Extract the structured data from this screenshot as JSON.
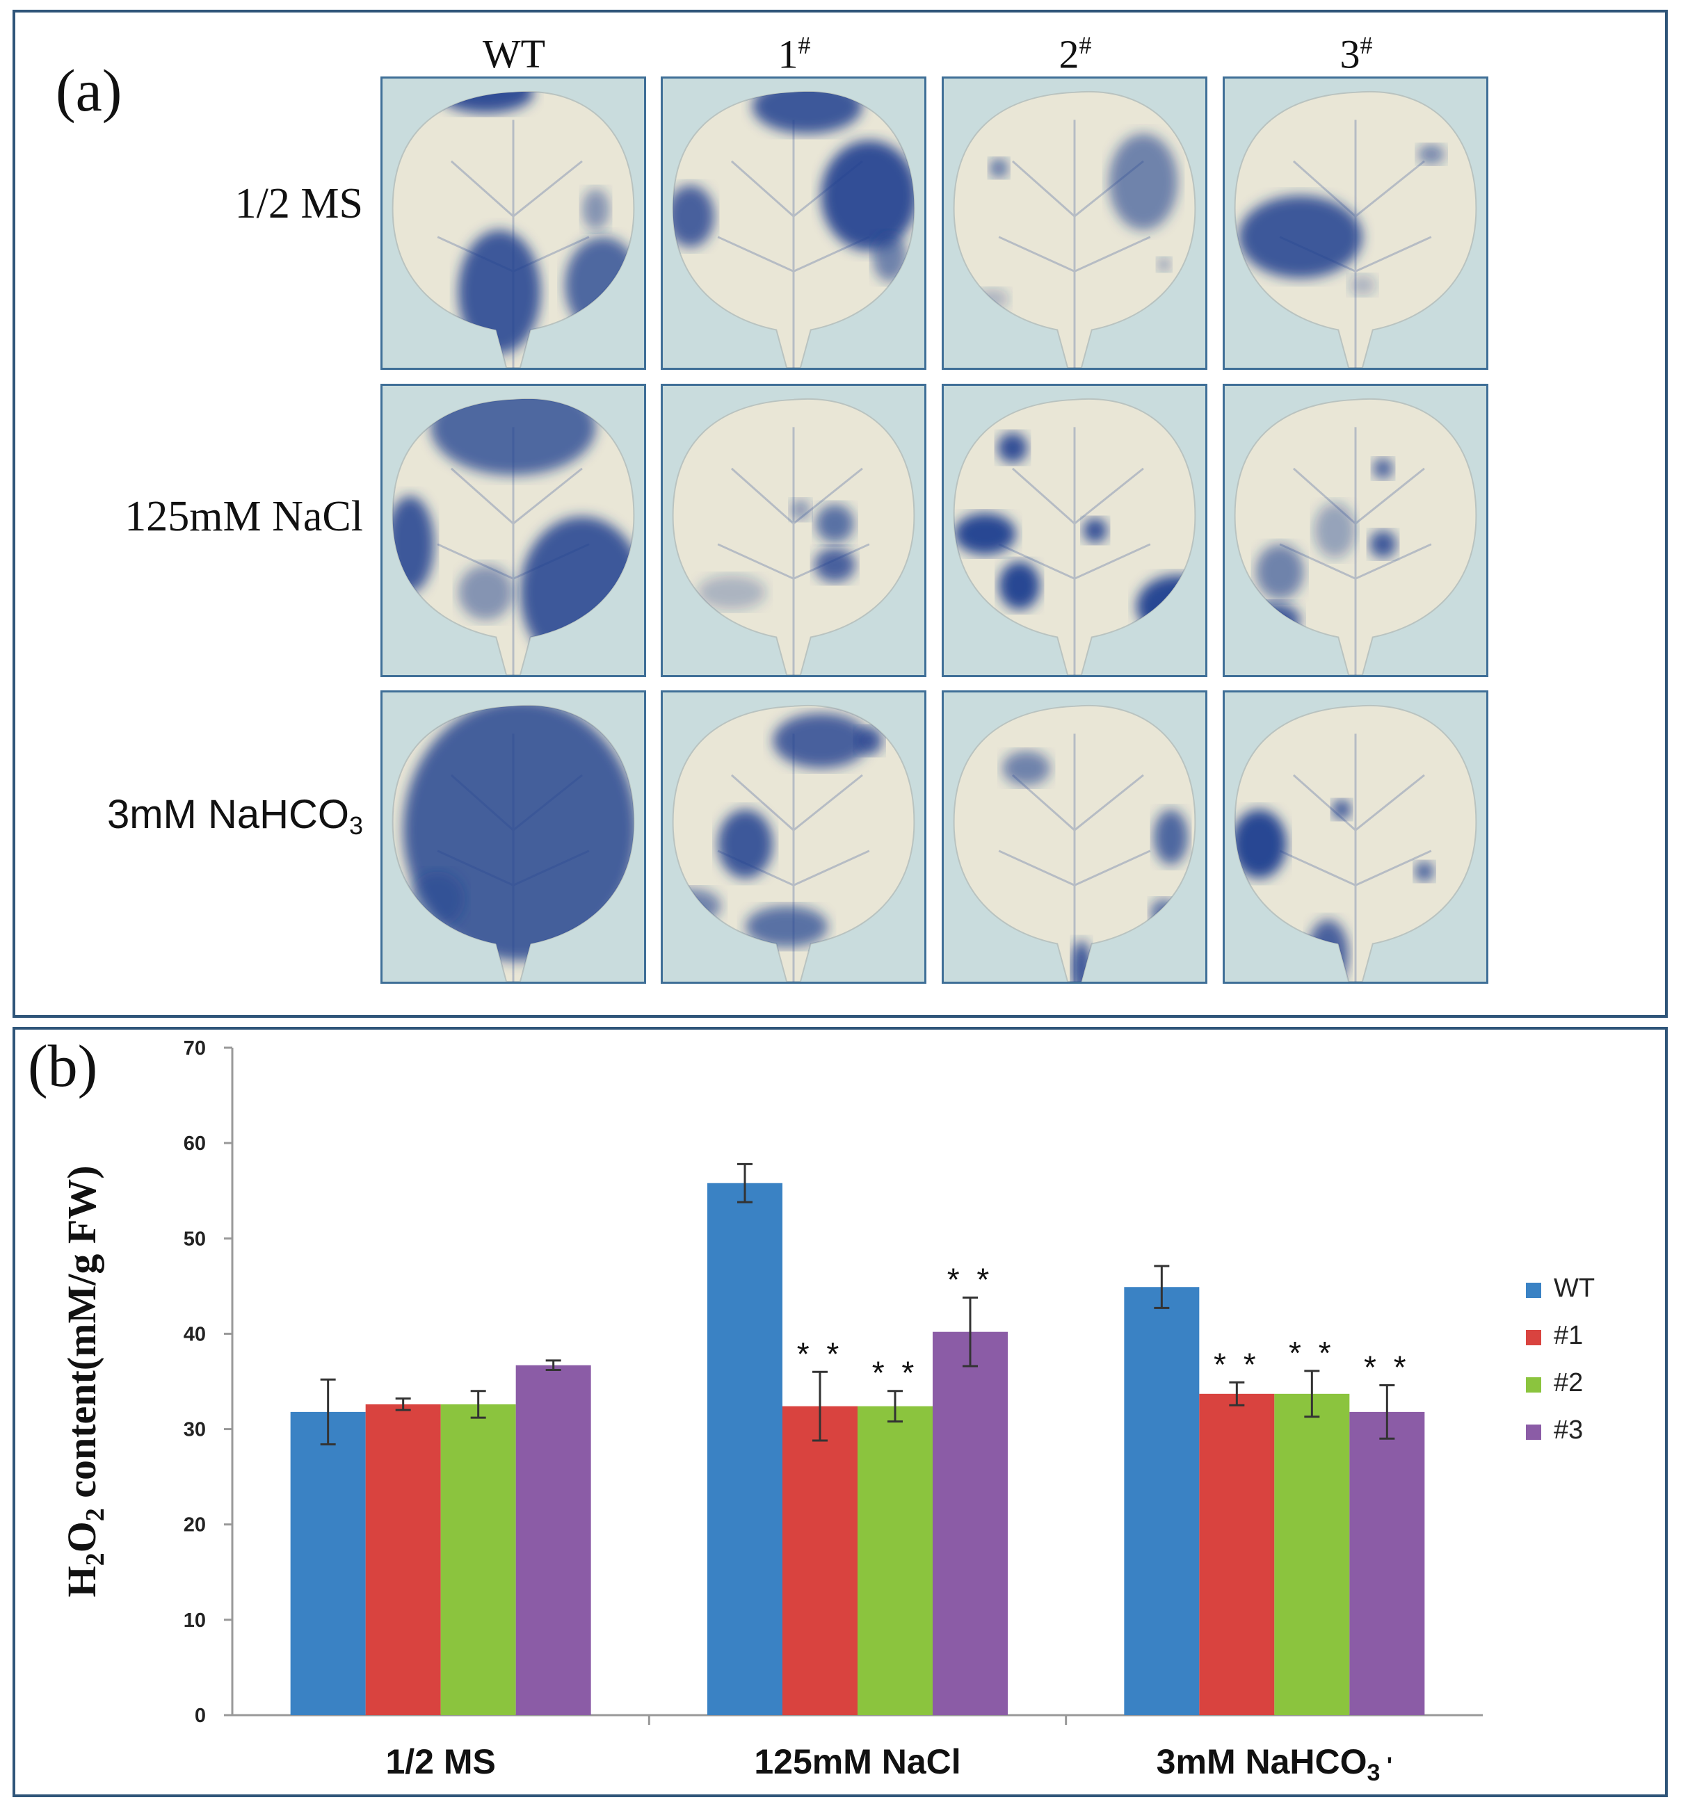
{
  "panel_a": {
    "label": "(a)",
    "columns": [
      {
        "base": "WT",
        "sup": ""
      },
      {
        "base": "1",
        "sup": "#"
      },
      {
        "base": "2",
        "sup": "#"
      },
      {
        "base": "3",
        "sup": "#"
      }
    ],
    "rows": [
      {
        "label": "1/2 MS",
        "sub": "",
        "after": ""
      },
      {
        "label": "125mM NaCl",
        "sub": "",
        "after": ""
      },
      {
        "label": "3mM NaHCO",
        "sub": "3",
        "after": ""
      }
    ],
    "colors": {
      "stain": "#1e3f8f",
      "leaf": "#e9e6d6",
      "background": "#c9dcdd"
    }
  },
  "panel_b": {
    "label": "(b)"
  },
  "chart_data": {
    "type": "bar",
    "title": "",
    "xlabel": "",
    "ylabel": {
      "pre": "H",
      "sub1": "2",
      "mid": "O",
      "sub2": "2",
      "post": " content(mM/g FW)"
    },
    "ylim": [
      0,
      70
    ],
    "yticks": [
      0,
      10,
      20,
      30,
      40,
      50,
      60,
      70
    ],
    "grid": false,
    "legend_position": "right",
    "categories": [
      {
        "text": "1/2 MS",
        "sub": "",
        "after": ""
      },
      {
        "text": "125mM NaCl",
        "sub": "",
        "after": ""
      },
      {
        "text": "3mM NaHCO",
        "sub": "3",
        "after": " '"
      }
    ],
    "series": [
      {
        "name": "WT",
        "color": "#3a82c4",
        "values": [
          31.8,
          55.8,
          44.9
        ],
        "errors": [
          3.4,
          2.0,
          2.2
        ],
        "sig": [
          "",
          "",
          ""
        ]
      },
      {
        "name": "#1",
        "color": "#d9433f",
        "values": [
          32.6,
          32.4,
          33.7
        ],
        "errors": [
          0.6,
          3.6,
          1.2
        ],
        "sig": [
          "",
          "* *",
          "* *"
        ]
      },
      {
        "name": "#2",
        "color": "#8bc43e",
        "values": [
          32.6,
          32.4,
          33.7
        ],
        "errors": [
          1.4,
          1.6,
          2.4
        ],
        "sig": [
          "",
          "* *",
          "* *"
        ]
      },
      {
        "name": "#3",
        "color": "#8b5ca6",
        "values": [
          36.7,
          40.2,
          31.8
        ],
        "errors": [
          0.5,
          3.6,
          2.8
        ],
        "sig": [
          "",
          "* *",
          "* *"
        ]
      }
    ]
  }
}
